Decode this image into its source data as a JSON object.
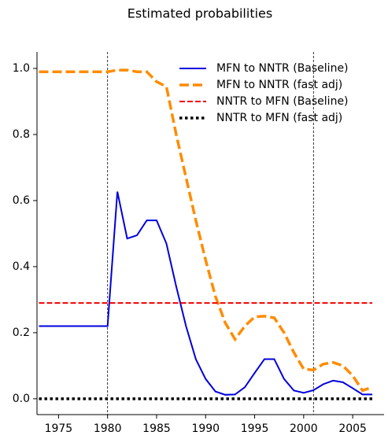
{
  "chart_data": {
    "type": "line",
    "title": "Estimated probabilities",
    "x": [
      1973,
      1974,
      1975,
      1976,
      1977,
      1978,
      1979,
      1980,
      1981,
      1982,
      1983,
      1984,
      1985,
      1986,
      1987,
      1988,
      1989,
      1990,
      1991,
      1992,
      1993,
      1994,
      1995,
      1996,
      1997,
      1998,
      1999,
      2000,
      2001,
      2002,
      2003,
      2004,
      2005,
      2006,
      2007
    ],
    "series": [
      {
        "name": "MFN to NNTR (Baseline)",
        "color": "#0000dd",
        "linestyle": "solid",
        "linewidth": 2,
        "values": [
          0.22,
          0.22,
          0.22,
          0.22,
          0.22,
          0.22,
          0.22,
          0.22,
          0.627,
          0.485,
          0.495,
          0.54,
          0.54,
          0.47,
          0.34,
          0.22,
          0.12,
          0.06,
          0.022,
          0.012,
          0.013,
          0.035,
          0.078,
          0.12,
          0.12,
          0.06,
          0.025,
          0.018,
          0.026,
          0.044,
          0.055,
          0.05,
          0.032,
          0.013,
          0.013
        ]
      },
      {
        "name": "MFN to NNTR (fast adj)",
        "color": "#ff8c00",
        "linestyle": "dashed",
        "linewidth": 3.5,
        "values": [
          0.99,
          0.99,
          0.99,
          0.99,
          0.99,
          0.99,
          0.99,
          0.99,
          0.995,
          0.995,
          0.99,
          0.99,
          0.96,
          0.945,
          0.8,
          0.67,
          0.54,
          0.42,
          0.31,
          0.23,
          0.18,
          0.22,
          0.248,
          0.25,
          0.245,
          0.2,
          0.14,
          0.09,
          0.087,
          0.105,
          0.11,
          0.1,
          0.07,
          0.025,
          0.035
        ]
      },
      {
        "name": "NNTR to MFN (Baseline)",
        "color": "#ee0000",
        "linestyle": "dashed",
        "linewidth": 2,
        "values": [
          0.29,
          0.29,
          0.29,
          0.29,
          0.29,
          0.29,
          0.29,
          0.29,
          0.29,
          0.29,
          0.29,
          0.29,
          0.29,
          0.29,
          0.29,
          0.29,
          0.29,
          0.29,
          0.29,
          0.29,
          0.29,
          0.29,
          0.29,
          0.29,
          0.29,
          0.29,
          0.29,
          0.29,
          0.29,
          0.29,
          0.29,
          0.29,
          0.29,
          0.29,
          0.29
        ]
      },
      {
        "name": "NNTR to MFN (fast adj)",
        "color": "#000000",
        "linestyle": "dotted",
        "linewidth": 3.5,
        "values": [
          0,
          0,
          0,
          0,
          0,
          0,
          0,
          0,
          0,
          0,
          0,
          0,
          0,
          0,
          0,
          0,
          0,
          0,
          0,
          0,
          0,
          0,
          0,
          0,
          0,
          0,
          0,
          0,
          0,
          0,
          0,
          0,
          0,
          0,
          0
        ]
      }
    ],
    "vlines": [
      1980,
      2001
    ],
    "xlim": [
      1972.8,
      2008.2
    ],
    "xticks": [
      1975,
      1980,
      1985,
      1990,
      1995,
      2000,
      2005
    ],
    "ylim": [
      -0.048,
      1.05
    ],
    "yticks": [
      {
        "value": 0,
        "label": "0.0"
      },
      0.2,
      0.4,
      0.6,
      0.8,
      {
        "value": 1,
        "label": "1.0"
      }
    ],
    "legend": "upper right",
    "grid": false
  }
}
